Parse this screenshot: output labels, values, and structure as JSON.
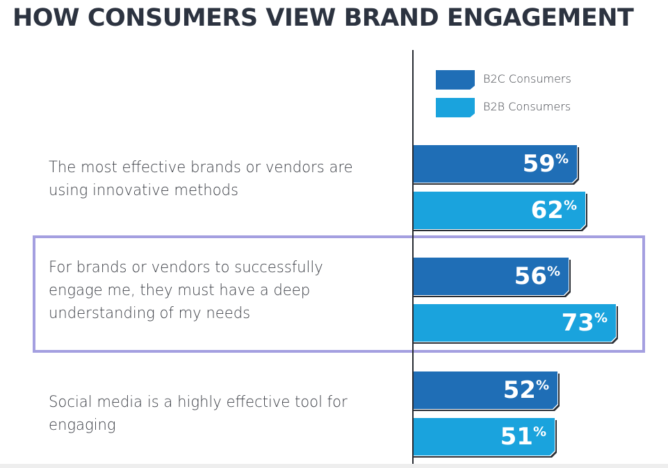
{
  "header": {
    "title": "HOW CONSUMERS VIEW BRAND ENGAGEMENT"
  },
  "colors": {
    "b2c": "#1f6eb6",
    "b2b": "#1aa3dd",
    "highlight_border": "#a49fe0",
    "axis": "#262a31"
  },
  "chart_data": {
    "type": "bar",
    "orientation": "horizontal",
    "title": "HOW CONSUMERS VIEW BRAND ENGAGEMENT",
    "categories": [
      "The most effective brands or vendors are using innovative methods",
      "For brands or vendors to successfully engage me, they must have a deep understanding of my needs",
      "Social media is a highly effective tool for engaging"
    ],
    "series": [
      {
        "name": "B2C Consumers",
        "values": [
          59,
          56,
          52
        ]
      },
      {
        "name": "B2B Consumers",
        "values": [
          62,
          73,
          51
        ]
      }
    ],
    "unit": "%",
    "highlighted_category_index": 1,
    "xlim": [
      0,
      100
    ],
    "grid": false,
    "legend_position": "top-right"
  }
}
